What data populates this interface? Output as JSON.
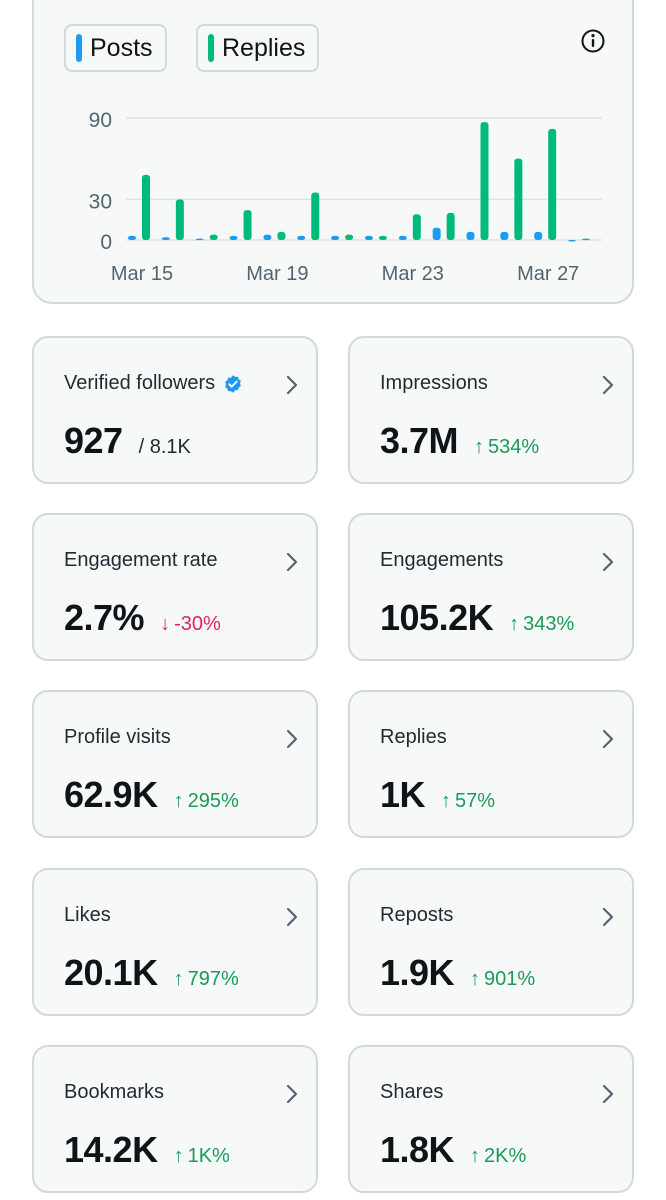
{
  "legend": {
    "posts": {
      "label": "Posts",
      "color": "#1d9bf0"
    },
    "replies": {
      "label": "Replies",
      "color": "#00ba7c"
    }
  },
  "chart_data": {
    "type": "bar",
    "title": "",
    "xlabel": "",
    "ylabel": "",
    "ylim": [
      0,
      90
    ],
    "y_ticks": [
      "90",
      "30",
      "0"
    ],
    "y_tick_values": [
      90,
      30,
      0
    ],
    "x_tick_labels": [
      "Mar 15",
      "Mar 19",
      "Mar 23",
      "Mar 27"
    ],
    "categories": [
      "Mar 15",
      "Mar 16",
      "Mar 17",
      "Mar 18",
      "Mar 19",
      "Mar 20",
      "Mar 21",
      "Mar 22",
      "Mar 23",
      "Mar 24",
      "Mar 25",
      "Mar 26",
      "Mar 27",
      "Mar 28"
    ],
    "series": [
      {
        "name": "Posts",
        "color": "#1d9bf0",
        "values": [
          3,
          2,
          1,
          3,
          4,
          3,
          3,
          3,
          3,
          9,
          6,
          6,
          6,
          0
        ]
      },
      {
        "name": "Replies",
        "color": "#00ba7c",
        "values": [
          48,
          30,
          4,
          22,
          6,
          35,
          4,
          3,
          19,
          20,
          87,
          60,
          82,
          1
        ]
      }
    ]
  },
  "stats": [
    {
      "label": "Verified followers",
      "value": "927",
      "total": "/ 8.1K",
      "verified": true
    },
    {
      "label": "Impressions",
      "value": "3.7M",
      "delta": "534%",
      "dir": "up"
    },
    {
      "label": "Engagement rate",
      "value": "2.7%",
      "delta": "-30%",
      "dir": "down"
    },
    {
      "label": "Engagements",
      "value": "105.2K",
      "delta": "343%",
      "dir": "up"
    },
    {
      "label": "Profile visits",
      "value": "62.9K",
      "delta": "295%",
      "dir": "up"
    },
    {
      "label": "Replies",
      "value": "1K",
      "delta": "57%",
      "dir": "up"
    },
    {
      "label": "Likes",
      "value": "20.1K",
      "delta": "797%",
      "dir": "up"
    },
    {
      "label": "Reposts",
      "value": "1.9K",
      "delta": "901%",
      "dir": "up"
    },
    {
      "label": "Bookmarks",
      "value": "14.2K",
      "delta": "1K%",
      "dir": "up"
    },
    {
      "label": "Shares",
      "value": "1.8K",
      "delta": "2K%",
      "dir": "up"
    }
  ]
}
